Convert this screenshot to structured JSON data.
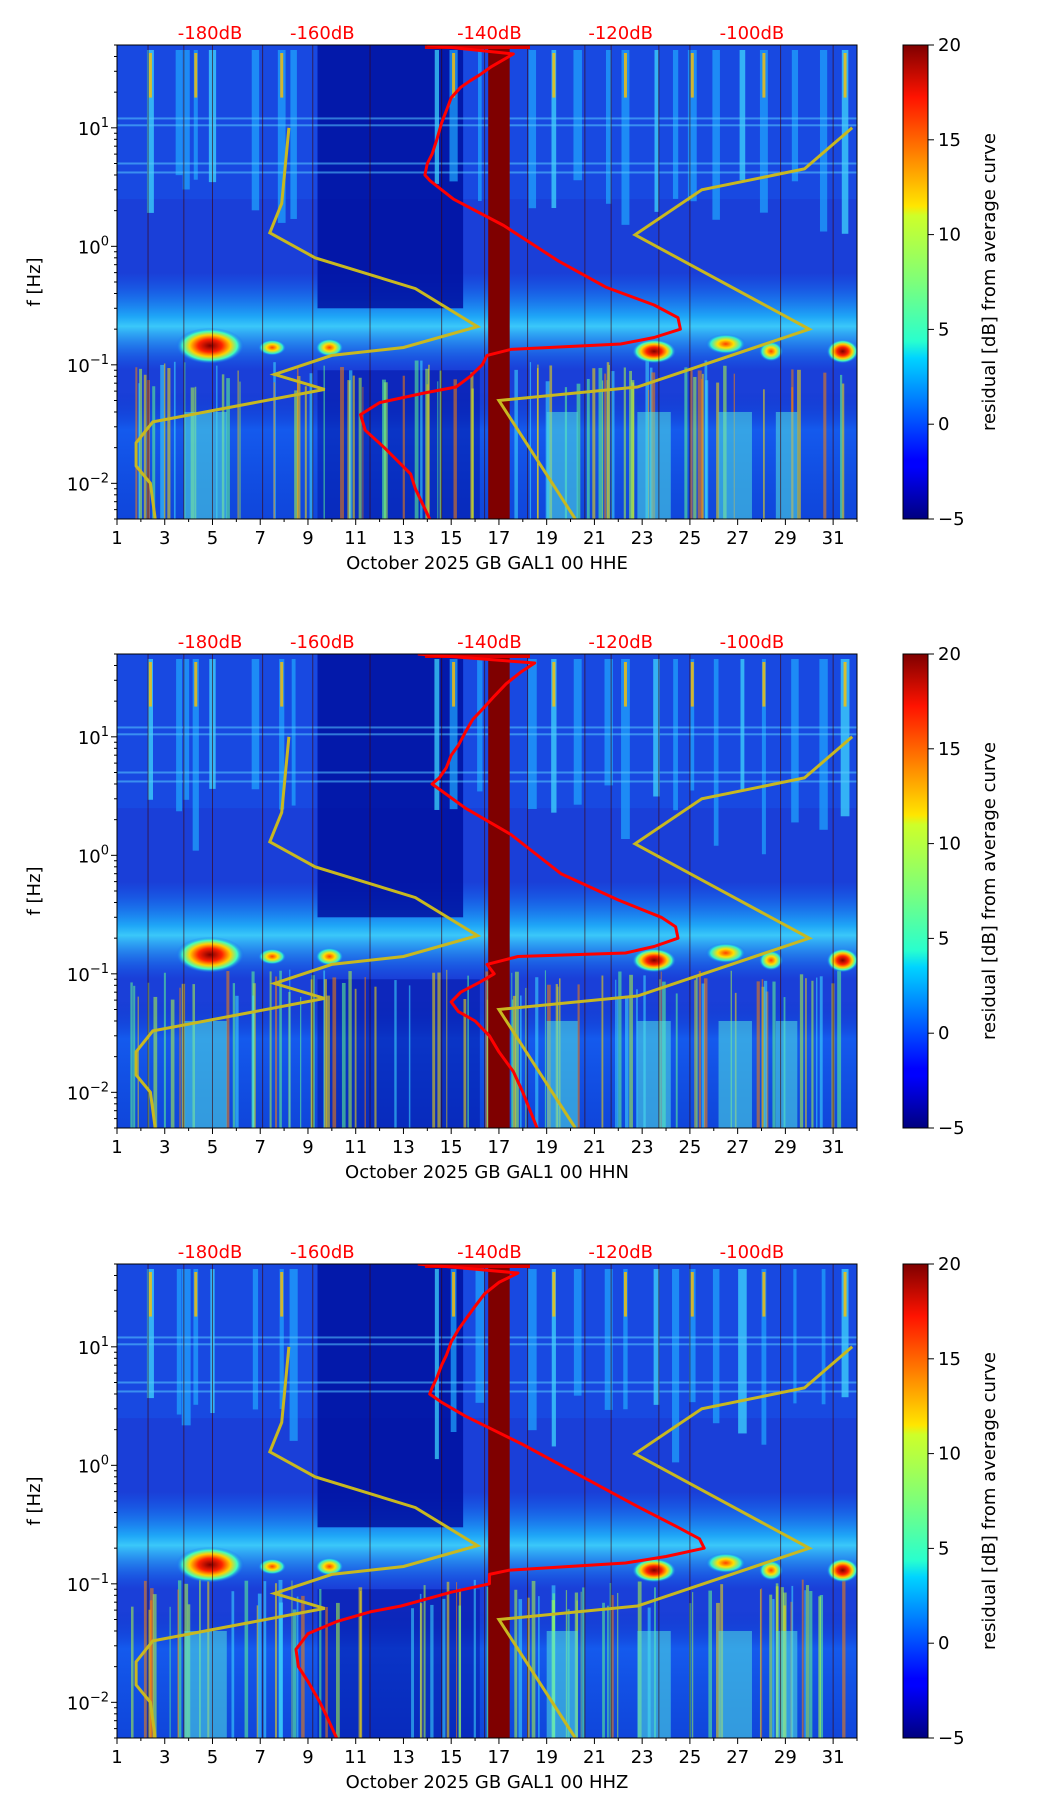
{
  "chart_data": {
    "type": "heatmap",
    "figure_note": "Three stacked spectrogram panels (residual dB from average curve) with overlaid PSD curves",
    "x_ticks": [
      "1",
      "3",
      "5",
      "7",
      "9",
      "11",
      "13",
      "15",
      "17",
      "19",
      "21",
      "23",
      "25",
      "27",
      "29",
      "31"
    ],
    "x_range": [
      1,
      32
    ],
    "y_label": "f [Hz]",
    "y_ticks": [
      {
        "value": 10,
        "base": "10",
        "exp": "1"
      },
      {
        "value": 1,
        "base": "10",
        "exp": "0"
      },
      {
        "value": 0.1,
        "base": "10",
        "exp": "−1"
      },
      {
        "value": 0.01,
        "base": "10",
        "exp": "−2"
      }
    ],
    "y_range": [
      0.005,
      50
    ],
    "top_axis_labels": [
      {
        "label": "-180dB",
        "day": 4.9
      },
      {
        "label": "-160dB",
        "day": 9.6
      },
      {
        "label": "-140dB",
        "day": 16.6
      },
      {
        "label": "-120dB",
        "day": 22.1
      },
      {
        "label": "-100dB",
        "day": 27.6
      }
    ],
    "top_axis_color": "#ff0000",
    "colorbar": {
      "label": "residual [dB] from average curve",
      "ticks": [
        "20",
        "15",
        "10",
        "5",
        "0",
        "−5"
      ],
      "range": [
        -5,
        20
      ],
      "colormap": "jet"
    },
    "noise_model_curve": {
      "name": "Peterson NLNM / NHNM reference (yellow)",
      "color": "#c8b820",
      "low_model": [
        [
          8.2,
          10
        ],
        [
          7.9,
          2.3
        ],
        [
          7.4,
          1.3
        ],
        [
          9.3,
          0.8
        ],
        [
          13.5,
          0.44
        ],
        [
          16.1,
          0.21
        ],
        [
          13.0,
          0.14
        ],
        [
          10.0,
          0.12
        ],
        [
          7.6,
          0.083
        ],
        [
          9.7,
          0.062
        ],
        [
          2.5,
          0.033
        ],
        [
          1.8,
          0.022
        ],
        [
          1.8,
          0.014
        ],
        [
          2.4,
          0.01
        ],
        [
          2.6,
          0.005
        ]
      ],
      "high_model": [
        [
          31.8,
          10
        ],
        [
          29.8,
          4.5
        ],
        [
          25.5,
          3.0
        ],
        [
          22.7,
          1.25
        ],
        [
          30.0,
          0.2
        ],
        [
          22.8,
          0.065
        ],
        [
          17.0,
          0.05
        ],
        [
          20.2,
          0.005
        ]
      ]
    },
    "panels": [
      {
        "title": "October 2025 GB GAL1 00 HHE",
        "psd_curve": {
          "name": "Median PSD",
          "color": "#ff0000",
          "points": [
            [
              14.0,
              50
            ],
            [
              17.6,
              42
            ],
            [
              16.7,
              33
            ],
            [
              16.2,
              28
            ],
            [
              15.8,
              25
            ],
            [
              15.4,
              22
            ],
            [
              15.0,
              18
            ],
            [
              14.8,
              14
            ],
            [
              14.6,
              11
            ],
            [
              14.4,
              8
            ],
            [
              14.2,
              6
            ],
            [
              14.0,
              5
            ],
            [
              13.9,
              4
            ],
            [
              14.1,
              3.6
            ],
            [
              15.1,
              2.5
            ],
            [
              17.2,
              1.5
            ],
            [
              19.5,
              0.75
            ],
            [
              21.5,
              0.45
            ],
            [
              23.5,
              0.32
            ],
            [
              24.5,
              0.25
            ],
            [
              24.6,
              0.2
            ],
            [
              23.5,
              0.17
            ],
            [
              22.1,
              0.15
            ],
            [
              17.5,
              0.135
            ],
            [
              16.5,
              0.12
            ],
            [
              16.3,
              0.1
            ],
            [
              15.8,
              0.08
            ],
            [
              15.2,
              0.065
            ],
            [
              13.9,
              0.058
            ],
            [
              12.0,
              0.048
            ],
            [
              11.2,
              0.038
            ],
            [
              11.4,
              0.028
            ],
            [
              12.2,
              0.02
            ],
            [
              13.3,
              0.012
            ],
            [
              13.5,
              0.009
            ],
            [
              14.1,
              0.005
            ]
          ]
        },
        "bright_band_day": 17.0
      },
      {
        "title": "October 2025 GB GAL1 00 HHN",
        "psd_curve": {
          "name": "Median PSD",
          "color": "#ff0000",
          "points": [
            [
              13.6,
              50
            ],
            [
              18.5,
              42
            ],
            [
              17.9,
              35
            ],
            [
              17.3,
              28
            ],
            [
              16.8,
              22
            ],
            [
              16.3,
              17
            ],
            [
              15.9,
              14
            ],
            [
              15.6,
              11
            ],
            [
              15.3,
              8.5
            ],
            [
              15.0,
              7
            ],
            [
              14.8,
              5.5
            ],
            [
              14.5,
              4.5
            ],
            [
              14.2,
              4
            ],
            [
              14.6,
              3.5
            ],
            [
              15.6,
              2.5
            ],
            [
              17.5,
              1.5
            ],
            [
              19.6,
              0.7
            ],
            [
              22.0,
              0.42
            ],
            [
              23.8,
              0.3
            ],
            [
              24.4,
              0.25
            ],
            [
              24.5,
              0.2
            ],
            [
              23.5,
              0.17
            ],
            [
              22.3,
              0.15
            ],
            [
              17.8,
              0.14
            ],
            [
              16.5,
              0.12
            ],
            [
              16.8,
              0.1
            ],
            [
              16.2,
              0.085
            ],
            [
              15.4,
              0.07
            ],
            [
              15.0,
              0.058
            ],
            [
              15.3,
              0.048
            ],
            [
              16.0,
              0.04
            ],
            [
              16.6,
              0.03
            ],
            [
              17.0,
              0.022
            ],
            [
              17.6,
              0.015
            ],
            [
              18.0,
              0.01
            ],
            [
              18.6,
              0.005
            ]
          ]
        },
        "bright_band_day": 17.0
      },
      {
        "title": "October 2025 GB GAL1 00 HHZ",
        "psd_curve": {
          "name": "Median PSD",
          "color": "#ff0000",
          "points": [
            [
              13.6,
              50
            ],
            [
              17.8,
              42
            ],
            [
              17.0,
              35
            ],
            [
              16.4,
              28
            ],
            [
              16.0,
              22
            ],
            [
              15.6,
              17
            ],
            [
              15.3,
              14
            ],
            [
              15.0,
              11
            ],
            [
              14.8,
              8.5
            ],
            [
              14.6,
              7
            ],
            [
              14.4,
              5.5
            ],
            [
              14.2,
              4.5
            ],
            [
              14.1,
              4
            ],
            [
              14.6,
              3.4
            ],
            [
              15.6,
              2.6
            ],
            [
              18.0,
              1.5
            ],
            [
              20.5,
              0.8
            ],
            [
              22.8,
              0.45
            ],
            [
              24.5,
              0.3
            ],
            [
              25.4,
              0.24
            ],
            [
              25.6,
              0.2
            ],
            [
              24.0,
              0.17
            ],
            [
              22.3,
              0.15
            ],
            [
              17.4,
              0.13
            ],
            [
              16.6,
              0.12
            ],
            [
              16.6,
              0.1
            ],
            [
              15.0,
              0.085
            ],
            [
              12.9,
              0.065
            ],
            [
              11.6,
              0.058
            ],
            [
              10.2,
              0.048
            ],
            [
              9.0,
              0.038
            ],
            [
              8.5,
              0.028
            ],
            [
              8.6,
              0.02
            ],
            [
              9.0,
              0.015
            ],
            [
              9.5,
              0.01
            ],
            [
              9.8,
              0.0075
            ],
            [
              10.2,
              0.005
            ]
          ]
        },
        "bright_band_day": 17.0
      }
    ]
  }
}
